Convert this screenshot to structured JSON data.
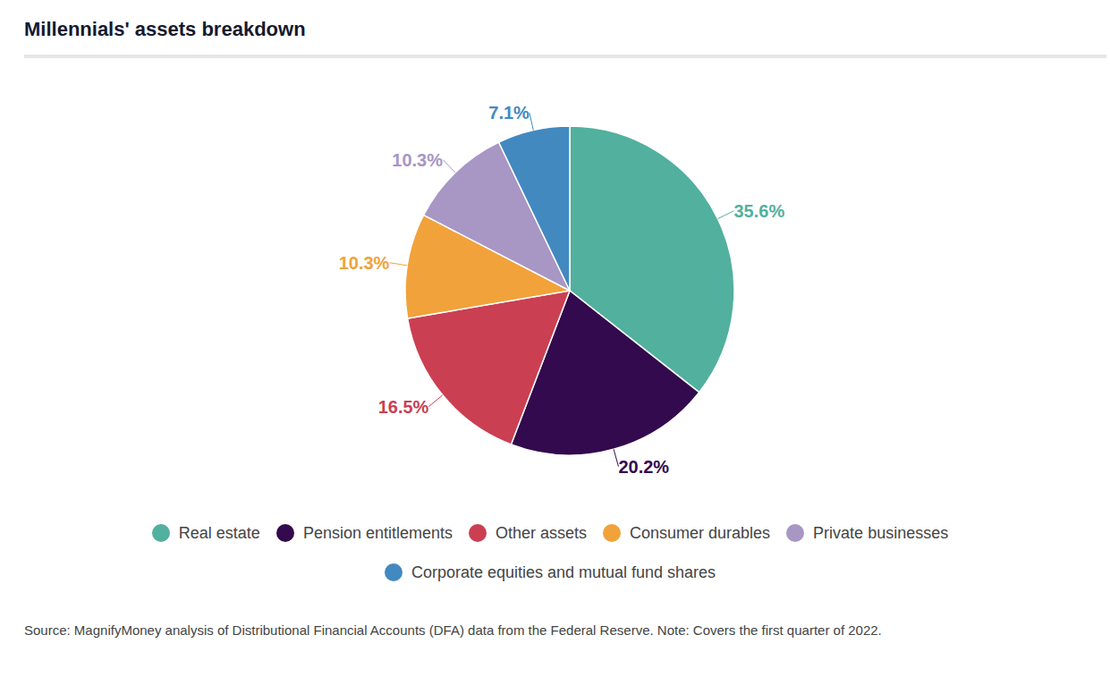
{
  "chart_data": {
    "type": "pie",
    "title": "Millennials' assets breakdown",
    "categories": [
      "Real estate",
      "Pension entitlements",
      "Other assets",
      "Consumer durables",
      "Private businesses",
      "Corporate equities and mutual fund shares"
    ],
    "values": [
      35.6,
      20.2,
      16.5,
      10.3,
      10.3,
      7.1
    ],
    "value_labels": [
      "35.6%",
      "20.2%",
      "16.5%",
      "10.3%",
      "10.3%",
      "7.1%"
    ],
    "colors": [
      "#52b09e",
      "#330a4d",
      "#cb3f52",
      "#f2a23a",
      "#a896c4",
      "#4289c0"
    ],
    "data_labels": true,
    "legend": "bottom",
    "source": "Source: MagnifyMoney analysis of Distributional Financial Accounts (DFA) data from the Federal Reserve. Note: Covers the first quarter of 2022."
  }
}
